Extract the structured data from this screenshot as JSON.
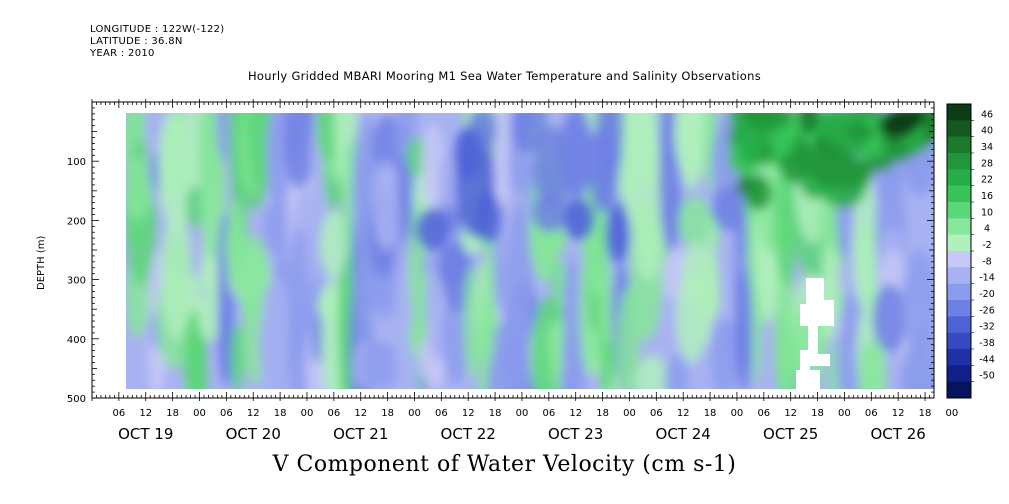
{
  "header": {
    "longitude": "LONGITUDE : 122W(-122)",
    "latitude": "LATITUDE : 36.8N",
    "year": "YEAR : 2010"
  },
  "chart_data": {
    "type": "heatmap",
    "title": "Hourly Gridded MBARI Mooring M1 Sea Water Temperature and Salinity Observations",
    "caption": "V Component of Water Velocity (cm s-1)",
    "ylabel": "DEPTH (m)",
    "y_axis": {
      "inverted": true,
      "ylim": [
        0,
        500
      ],
      "ticks": [
        100,
        200,
        300,
        400,
        500
      ]
    },
    "x_axis": {
      "xlim_hours": [
        0,
        188
      ],
      "hour_ticks": [
        "06",
        "12",
        "18",
        "00",
        "06",
        "12",
        "18",
        "00",
        "06",
        "12",
        "18",
        "00",
        "06",
        "12",
        "18",
        "00",
        "06",
        "12",
        "18",
        "00",
        "06",
        "12",
        "18",
        "00",
        "06",
        "12",
        "18",
        "00",
        "06",
        "12",
        "18",
        "00"
      ],
      "date_labels": [
        "OCT 19",
        "OCT 20",
        "OCT 21",
        "OCT 22",
        "OCT 23",
        "OCT 24",
        "OCT 25",
        "OCT 26"
      ]
    },
    "data_extent": {
      "hours": [
        8,
        186
      ],
      "depth_m": [
        10,
        485
      ]
    },
    "colorbar": {
      "levels": [
        46,
        40,
        34,
        28,
        22,
        16,
        10,
        4,
        -2,
        -8,
        -14,
        -20,
        -26,
        -32,
        -38,
        -44,
        -50
      ],
      "colors": [
        "#0a3d17",
        "#14591f",
        "#1c7a2c",
        "#22963a",
        "#27ad48",
        "#37c55a",
        "#5bd678",
        "#86e69a",
        "#b0f0bd",
        "#c6c8f6",
        "#a8b2f2",
        "#8c9ced",
        "#6e80e4",
        "#4e62d8",
        "#3549c4",
        "#1f30a8",
        "#111f88",
        "#07135e"
      ]
    }
  }
}
